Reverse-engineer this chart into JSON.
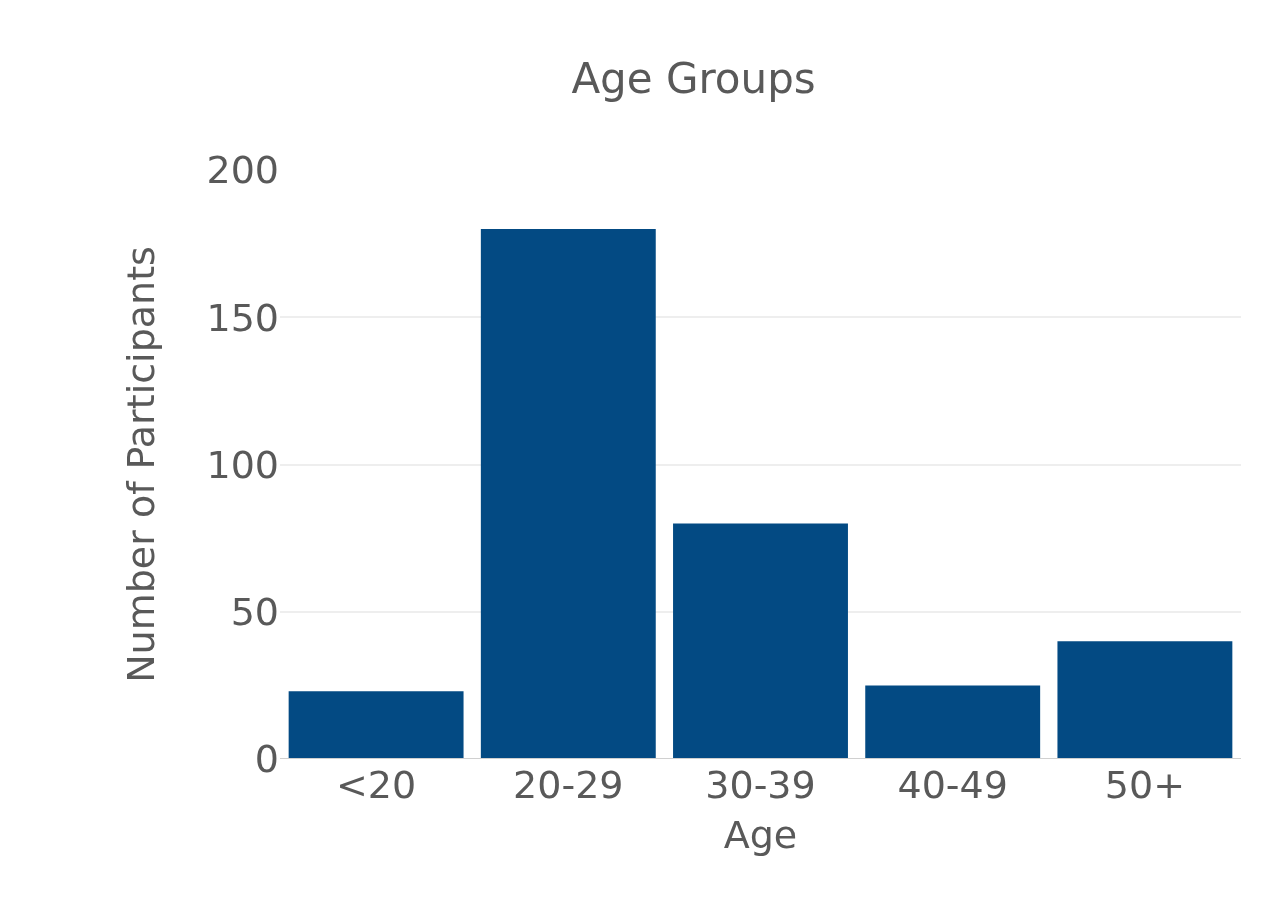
{
  "chart_data": {
    "type": "bar",
    "title": "Age Groups",
    "xlabel": "Age",
    "ylabel": "Number of Participants",
    "categories": [
      "<20",
      "20-29",
      "30-39",
      "40-49",
      "50+"
    ],
    "values": [
      23,
      180,
      80,
      25,
      40
    ],
    "color": "#034a83",
    "ylim": [
      0,
      200
    ],
    "yticks": [
      0,
      50,
      100,
      150,
      200
    ],
    "grid": "y"
  }
}
